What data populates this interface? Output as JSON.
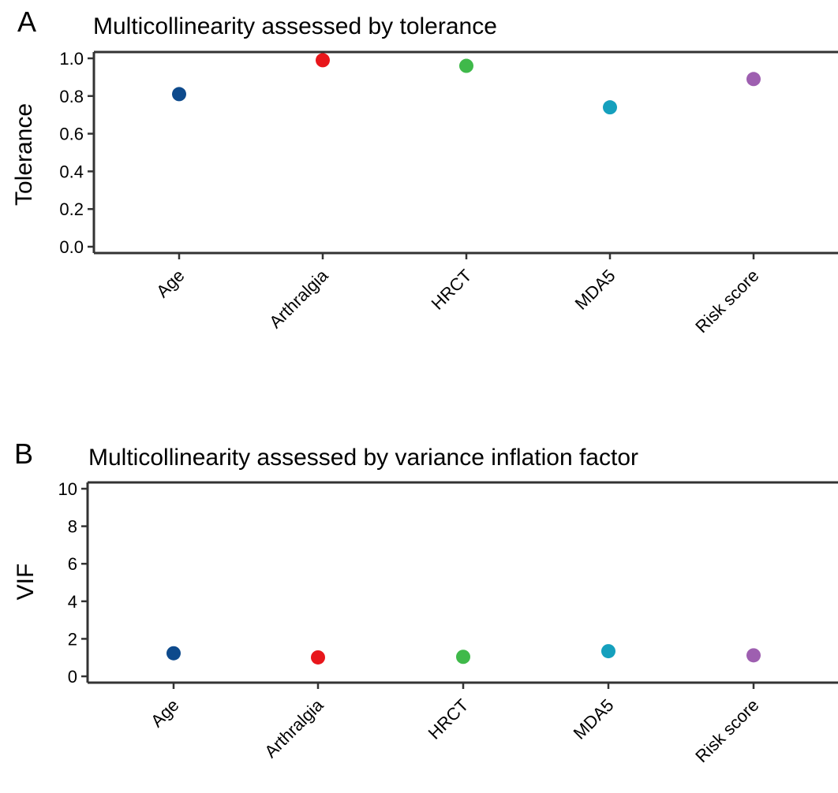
{
  "chart_data": [
    {
      "type": "scatter",
      "panel": "A",
      "title": "Multicollinearity assessed by tolerance",
      "xlabel": "",
      "ylabel": "Tolerance",
      "categories": [
        "Age",
        "Arthralgia",
        "HRCT",
        "MDA5",
        "Risk score"
      ],
      "values": [
        0.81,
        0.99,
        0.96,
        0.74,
        0.89
      ],
      "colors": [
        "#0d4a8c",
        "#e8161b",
        "#3fb94a",
        "#15a0bd",
        "#9e5fb0"
      ],
      "ylim": [
        0,
        1
      ],
      "yticks": [
        0.0,
        0.2,
        0.4,
        0.6,
        0.8,
        1.0
      ],
      "ytick_labels": [
        "0.0",
        "0.2",
        "0.4",
        "0.6",
        "0.8",
        "1.0"
      ],
      "grid": false,
      "legend": "none"
    },
    {
      "type": "scatter",
      "panel": "B",
      "title": "Multicollinearity assessed by variance inflation factor",
      "xlabel": "",
      "ylabel": "VIF",
      "categories": [
        "Age",
        "Arthralgia",
        "HRCT",
        "MDA5",
        "Risk score"
      ],
      "values": [
        1.23,
        1.01,
        1.04,
        1.34,
        1.12
      ],
      "colors": [
        "#0d4a8c",
        "#e8161b",
        "#3fb94a",
        "#15a0bd",
        "#9e5fb0"
      ],
      "ylim": [
        0,
        10
      ],
      "yticks": [
        0,
        2,
        4,
        6,
        8,
        10
      ],
      "ytick_labels": [
        "0",
        "2",
        "4",
        "6",
        "8",
        "10"
      ],
      "grid": false,
      "legend": "none"
    }
  ]
}
